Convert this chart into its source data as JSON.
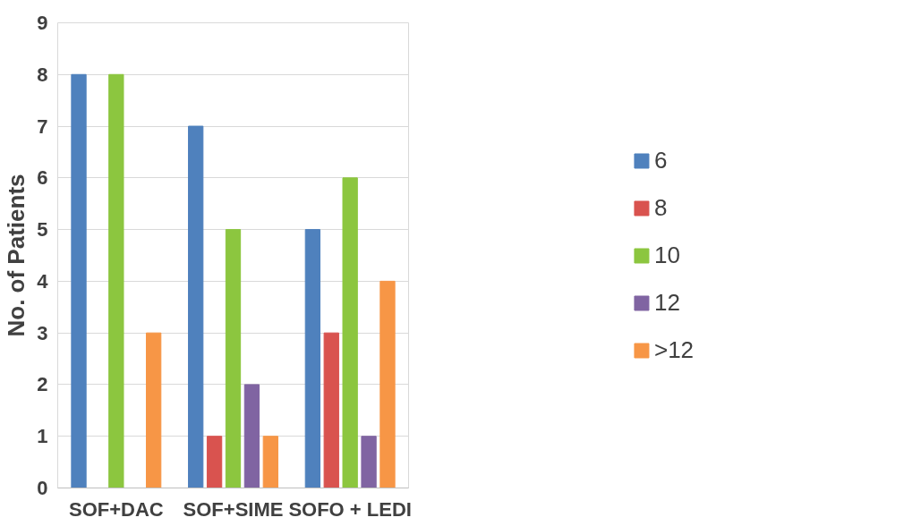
{
  "chart_data": {
    "type": "bar",
    "ylabel": "No. of Patients",
    "categories": [
      "SOF+DAC",
      "SOF+SIME",
      "SOFO + LEDI"
    ],
    "series": [
      {
        "name": "6",
        "color": "#4f81bd",
        "values": [
          8,
          7,
          5
        ]
      },
      {
        "name": "8",
        "color": "#d9534f",
        "values": [
          0,
          1,
          3
        ]
      },
      {
        "name": "10",
        "color": "#8cc63f",
        "values": [
          8,
          5,
          6
        ]
      },
      {
        "name": "12",
        "color": "#8064a2",
        "values": [
          0,
          2,
          1
        ]
      },
      {
        "name": ">12",
        "color": "#f79646",
        "values": [
          3,
          1,
          4
        ]
      }
    ],
    "ylim": [
      0,
      9
    ],
    "yticks": [
      0,
      1,
      2,
      3,
      4,
      5,
      6,
      7,
      8,
      9
    ],
    "grid": "y",
    "legend": "right"
  }
}
